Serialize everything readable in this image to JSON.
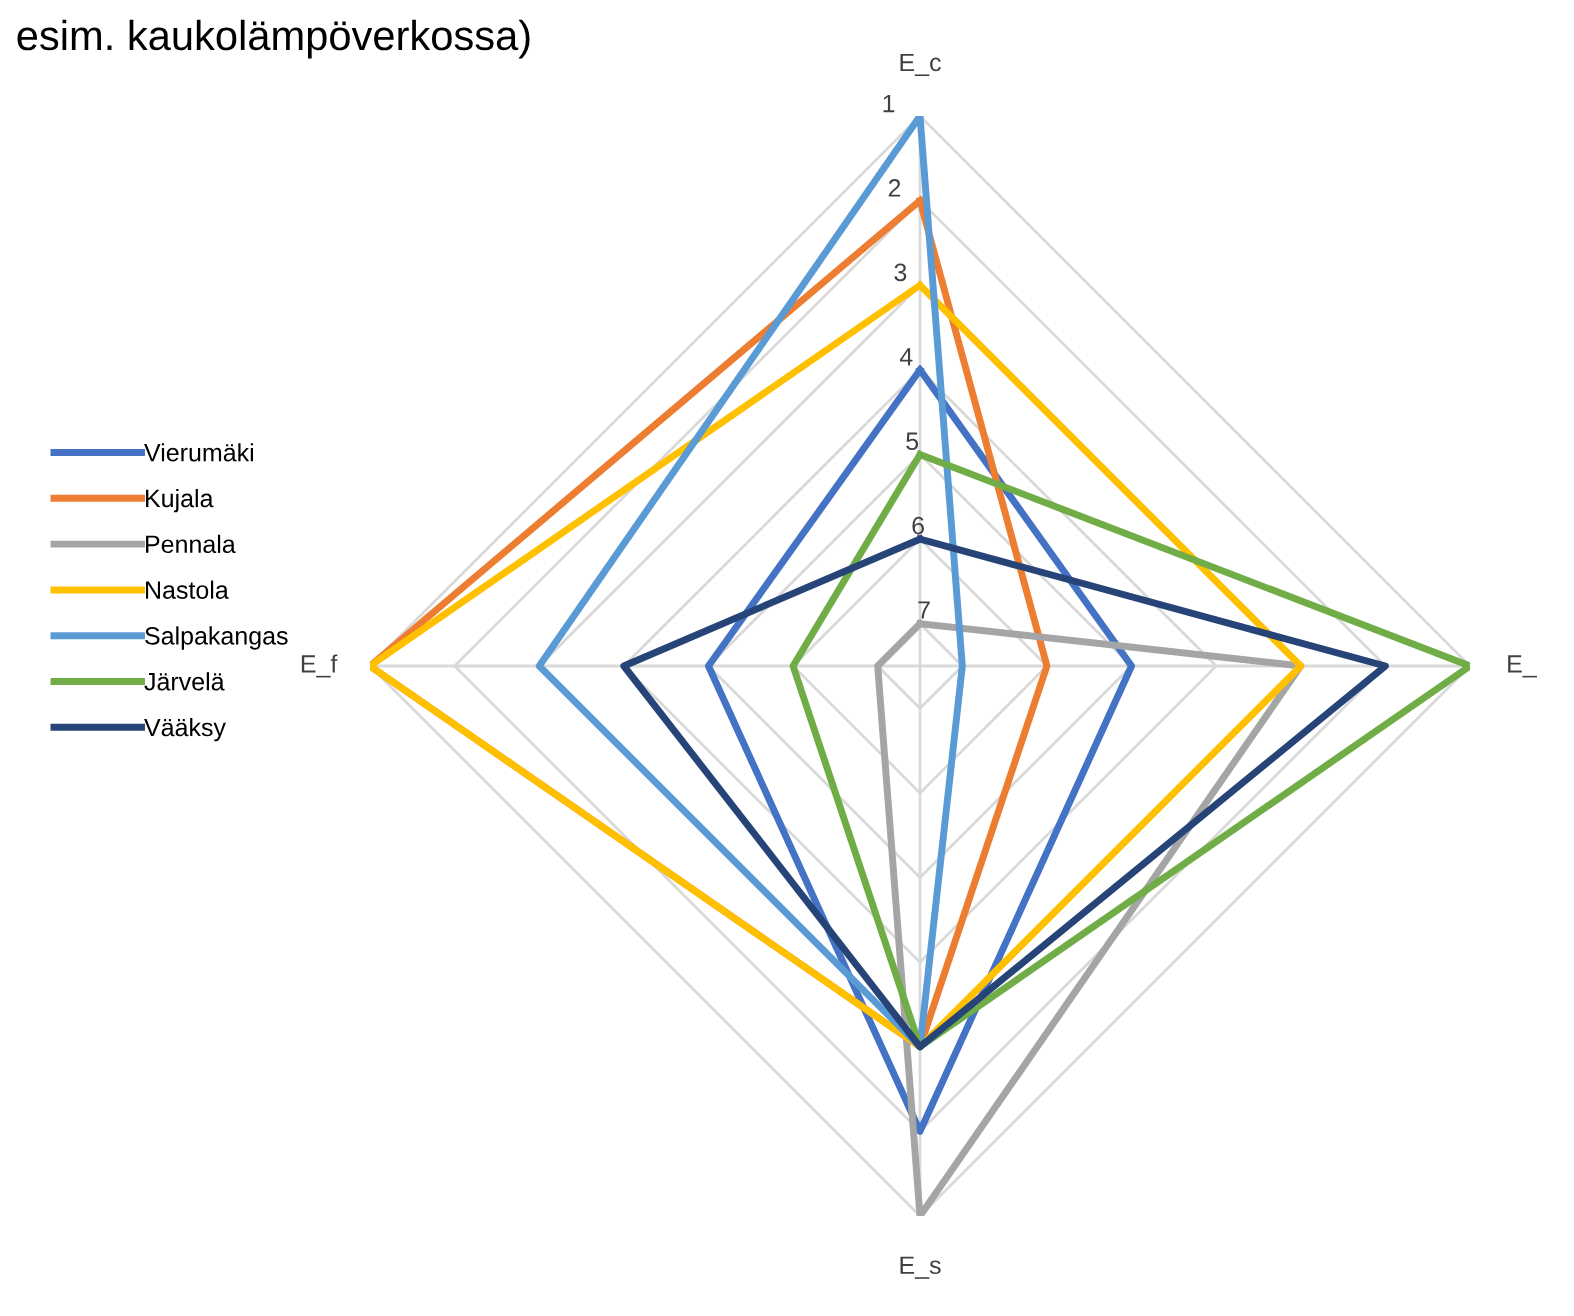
{
  "chart_data": {
    "type": "radar",
    "categories": [
      "E_c",
      "E_",
      "E_s",
      "E_f"
    ],
    "series": [
      {
        "name": "Vierumäki",
        "color": "#4472c4",
        "values": [
          4,
          5,
          2,
          5
        ]
      },
      {
        "name": "Kujala",
        "color": "#ed7d31",
        "values": [
          2,
          6,
          3,
          1
        ]
      },
      {
        "name": "Pennala",
        "color": "#a5a5a5",
        "values": [
          7,
          3,
          1,
          7
        ]
      },
      {
        "name": "Nastola",
        "color": "#ffc000",
        "values": [
          3,
          3,
          3,
          1
        ]
      },
      {
        "name": "Salpakangas",
        "color": "#5b9bd5",
        "values": [
          1,
          7,
          3,
          3
        ]
      },
      {
        "name": "Järvelä",
        "color": "#70ad47",
        "values": [
          5,
          1,
          3,
          6
        ]
      },
      {
        "name": "Vääksy",
        "color": "#264478",
        "values": [
          6,
          2,
          3,
          4
        ]
      }
    ],
    "ylim": [
      7.5,
      1
    ],
    "yticks": [
      1,
      2,
      3,
      4,
      5,
      6,
      7
    ],
    "grid": true,
    "legend": "left",
    "annotations": [
      "esim. kaukolämpöverkossa)"
    ]
  }
}
